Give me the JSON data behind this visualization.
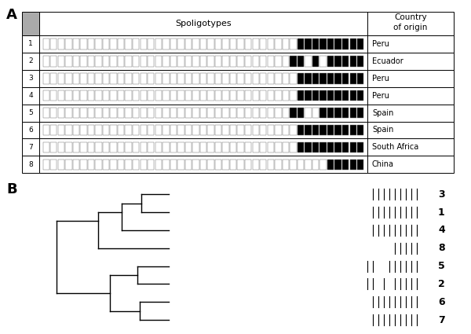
{
  "panel_A_label": "A",
  "panel_B_label": "B",
  "n_spacers": 43,
  "rows": [
    {
      "id": 1,
      "country": "Peru",
      "pattern": [
        0,
        0,
        0,
        0,
        0,
        0,
        0,
        0,
        0,
        0,
        0,
        0,
        0,
        0,
        0,
        0,
        0,
        0,
        0,
        0,
        0,
        0,
        0,
        0,
        0,
        0,
        0,
        0,
        0,
        0,
        0,
        0,
        0,
        0,
        1,
        1,
        1,
        1,
        1,
        1,
        1,
        1,
        1
      ]
    },
    {
      "id": 2,
      "country": "Ecuador",
      "pattern": [
        0,
        0,
        0,
        0,
        0,
        0,
        0,
        0,
        0,
        0,
        0,
        0,
        0,
        0,
        0,
        0,
        0,
        0,
        0,
        0,
        0,
        0,
        0,
        0,
        0,
        0,
        0,
        0,
        0,
        0,
        0,
        0,
        0,
        1,
        1,
        0,
        1,
        0,
        1,
        1,
        1,
        1,
        1
      ]
    },
    {
      "id": 3,
      "country": "Peru",
      "pattern": [
        0,
        0,
        0,
        0,
        0,
        0,
        0,
        0,
        0,
        0,
        0,
        0,
        0,
        0,
        0,
        0,
        0,
        0,
        0,
        0,
        0,
        0,
        0,
        0,
        0,
        0,
        0,
        0,
        0,
        0,
        0,
        0,
        0,
        0,
        1,
        1,
        1,
        1,
        1,
        1,
        1,
        1,
        1
      ]
    },
    {
      "id": 4,
      "country": "Peru",
      "pattern": [
        0,
        0,
        0,
        0,
        0,
        0,
        0,
        0,
        0,
        0,
        0,
        0,
        0,
        0,
        0,
        0,
        0,
        0,
        0,
        0,
        0,
        0,
        0,
        0,
        0,
        0,
        0,
        0,
        0,
        0,
        0,
        0,
        0,
        0,
        1,
        1,
        1,
        1,
        1,
        1,
        1,
        1,
        1
      ]
    },
    {
      "id": 5,
      "country": "Spain",
      "pattern": [
        0,
        0,
        0,
        0,
        0,
        0,
        0,
        0,
        0,
        0,
        0,
        0,
        0,
        0,
        0,
        0,
        0,
        0,
        0,
        0,
        0,
        0,
        0,
        0,
        0,
        0,
        0,
        0,
        0,
        0,
        0,
        0,
        0,
        1,
        1,
        0,
        0,
        1,
        1,
        1,
        1,
        1,
        1
      ]
    },
    {
      "id": 6,
      "country": "Spain",
      "pattern": [
        0,
        0,
        0,
        0,
        0,
        0,
        0,
        0,
        0,
        0,
        0,
        0,
        0,
        0,
        0,
        0,
        0,
        0,
        0,
        0,
        0,
        0,
        0,
        0,
        0,
        0,
        0,
        0,
        0,
        0,
        0,
        0,
        0,
        0,
        1,
        1,
        1,
        1,
        1,
        1,
        1,
        1,
        1
      ]
    },
    {
      "id": 7,
      "country": "South Africa",
      "pattern": [
        0,
        0,
        0,
        0,
        0,
        0,
        0,
        0,
        0,
        0,
        0,
        0,
        0,
        0,
        0,
        0,
        0,
        0,
        0,
        0,
        0,
        0,
        0,
        0,
        0,
        0,
        0,
        0,
        0,
        0,
        0,
        0,
        0,
        0,
        1,
        1,
        1,
        1,
        1,
        1,
        1,
        1,
        1
      ]
    },
    {
      "id": 8,
      "country": "China",
      "pattern": [
        0,
        0,
        0,
        0,
        0,
        0,
        0,
        0,
        0,
        0,
        0,
        0,
        0,
        0,
        0,
        0,
        0,
        0,
        0,
        0,
        0,
        0,
        0,
        0,
        0,
        0,
        0,
        0,
        0,
        0,
        0,
        0,
        0,
        0,
        0,
        0,
        0,
        0,
        1,
        1,
        1,
        1,
        1
      ]
    }
  ],
  "header_gray": "#aaaaaa",
  "box_black": "#000000",
  "box_white": "#ffffff",
  "box_outline": "#777777",
  "dendrogram_order": [
    3,
    1,
    4,
    8,
    5,
    2,
    6,
    7
  ]
}
